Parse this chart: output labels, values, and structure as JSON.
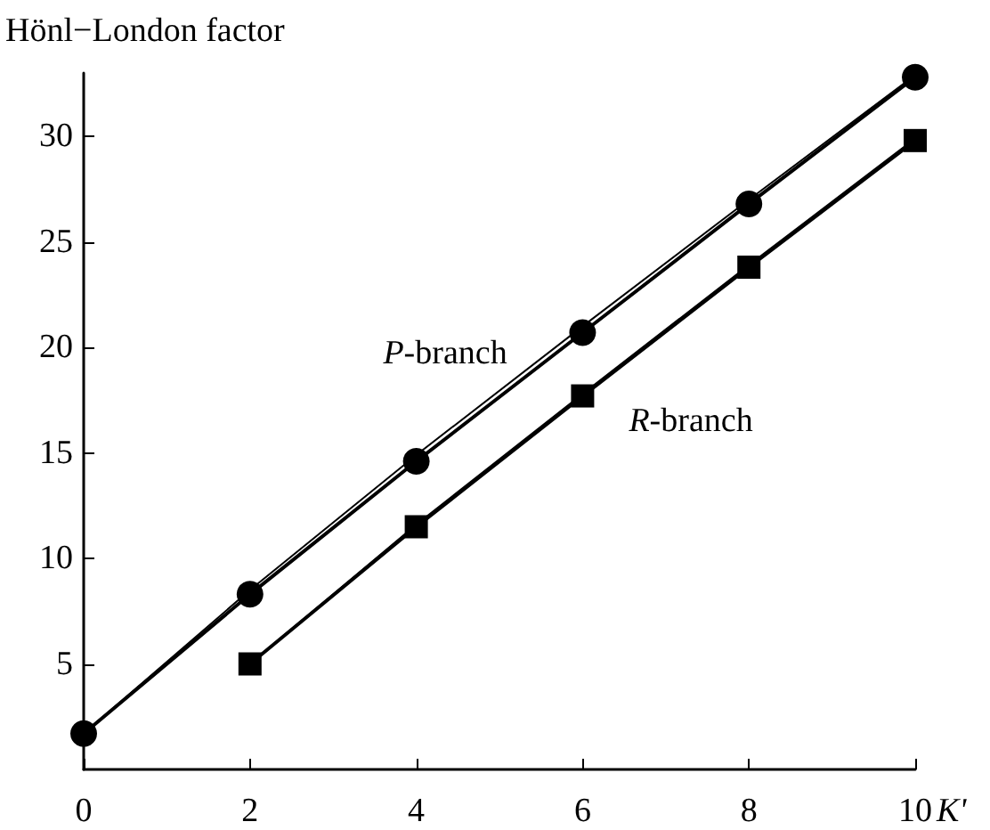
{
  "chart_data": {
    "type": "line",
    "ylabel": "Hönl−London factor",
    "xlabel": "K'",
    "xlim": [
      0,
      10
    ],
    "xticks": [
      0,
      2,
      4,
      6,
      8,
      10
    ],
    "ylim": [
      0,
      33
    ],
    "yticks": [
      5,
      10,
      15,
      20,
      25,
      30
    ],
    "grid": false,
    "line_style": "solid",
    "series": [
      {
        "name": "P-branch",
        "color": "#000000",
        "marker": "circle",
        "x": [
          0,
          2,
          4,
          6,
          8,
          10
        ],
        "values": [
          1.7,
          8.3,
          14.6,
          20.7,
          26.8,
          32.8
        ]
      },
      {
        "color": "#000000",
        "marker": "none",
        "x": [
          0,
          2,
          4,
          6,
          8,
          10
        ],
        "values": [
          1.7,
          8.5,
          14.9,
          21.0,
          27.0,
          32.9
        ]
      },
      {
        "name": "R-branch",
        "color": "#000000",
        "marker": "square",
        "x": [
          2,
          4,
          6,
          8,
          10
        ],
        "values": [
          5.0,
          11.5,
          17.7,
          23.8,
          29.8
        ]
      },
      {
        "color": "#000000",
        "marker": "none",
        "x": [
          2,
          4,
          6,
          8,
          10
        ],
        "values": [
          5.0,
          11.6,
          17.8,
          23.9,
          29.9
        ]
      }
    ]
  }
}
